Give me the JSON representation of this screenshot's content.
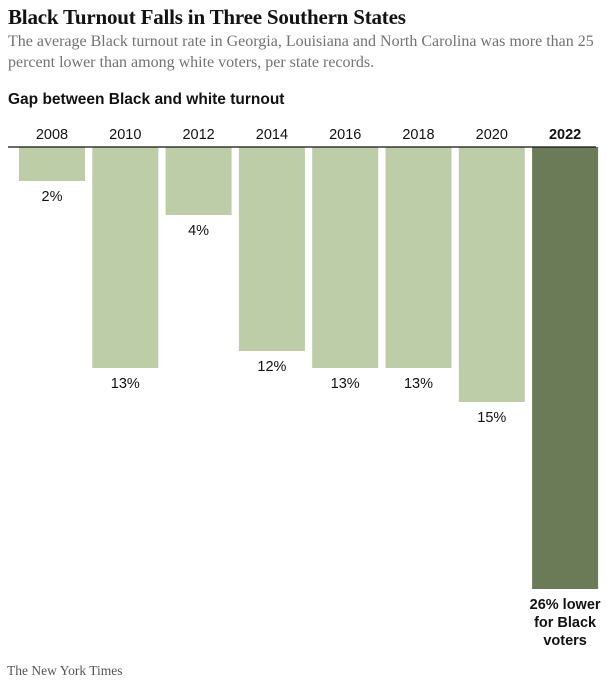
{
  "header": {
    "title": "Black Turnout Falls in Three Southern States",
    "subtitle": "The average Black turnout rate in Georgia, Louisiana and North Carolina was more than 25 percent lower than among white voters, per state records."
  },
  "footer": {
    "credit": "The New York Times"
  },
  "colors": {
    "bar": "#bccda8",
    "highlight_bar": "#6b7b57",
    "baseline": "#121212"
  },
  "chart_data": {
    "type": "bar",
    "orientation": "downward",
    "title": "Gap between Black and white turnout",
    "xlabel": "",
    "ylabel": "",
    "categories": [
      "2008",
      "2010",
      "2012",
      "2014",
      "2016",
      "2018",
      "2020",
      "2022"
    ],
    "values": [
      2,
      13,
      4,
      12,
      13,
      13,
      15,
      26
    ],
    "labels": [
      "2%",
      "13%",
      "4%",
      "12%",
      "13%",
      "13%",
      "15%",
      [
        "26% lower",
        "for Black",
        "voters"
      ]
    ],
    "highlight_index": 7,
    "ylim": [
      0,
      26
    ],
    "grid": false,
    "legend": "none"
  }
}
